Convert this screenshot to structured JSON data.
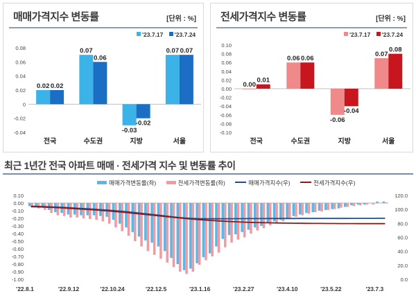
{
  "left_panel": {
    "title": "매매가격지수 변동률",
    "unit": "[단위 : %]",
    "legend": [
      "'23.7.17",
      "'23.7.24"
    ],
    "colors": [
      "#3bb3e8",
      "#1a6fc4"
    ]
  },
  "right_panel": {
    "title": "전세가격지수 변동률",
    "unit": "[단위 : %]",
    "legend": [
      "'23.7.17",
      "'23.7.24"
    ],
    "colors": [
      "#f08a8a",
      "#c8161e"
    ]
  },
  "bottom_panel": {
    "title": "최근 1년간 전국 아파트 매매 · 전세가격 지수 및 변동률 추이",
    "legend": [
      "매매가격변동률(좌)",
      "전세가격변동률(좌)",
      "매매가격지수(우)",
      "전세가격지수(우)"
    ],
    "colors": {
      "sale_bar": "#5bb7e6",
      "jeonse_bar": "#f19aa1",
      "sale_line": "#1f4e8c",
      "jeonse_line": "#8b1a1a"
    }
  },
  "chart_data": [
    {
      "type": "bar",
      "categories": [
        "전국",
        "수도권",
        "지방",
        "서울"
      ],
      "series": [
        {
          "name": "'23.7.17",
          "values": [
            0.02,
            0.07,
            -0.03,
            0.07
          ]
        },
        {
          "name": "'23.7.24",
          "values": [
            0.02,
            0.06,
            -0.02,
            0.07
          ]
        }
      ],
      "data_labels": [
        [
          "0.02",
          "0.07",
          "-0.03",
          "0.07"
        ],
        [
          "0.02",
          "0.06",
          "-0.02",
          "0.07"
        ]
      ],
      "ylim": [
        -0.04,
        0.08
      ],
      "yticks": [
        "-0.04",
        "-0.02",
        "0",
        "0.02",
        "0.04",
        "0.06",
        "0.08"
      ]
    },
    {
      "type": "bar",
      "categories": [
        "전국",
        "수도권",
        "지방",
        "서울"
      ],
      "series": [
        {
          "name": "'23.7.17",
          "values": [
            0.0,
            0.06,
            -0.06,
            0.07
          ]
        },
        {
          "name": "'23.7.24",
          "values": [
            0.01,
            0.06,
            -0.04,
            0.08
          ]
        }
      ],
      "data_labels": [
        [
          "0.00",
          "0.06",
          "-0.06",
          "0.07"
        ],
        [
          "0.01",
          "0.06",
          "-0.04",
          "0.08"
        ]
      ],
      "ylim": [
        -0.1,
        0.1
      ],
      "yticks": [
        "-0.10",
        "-0.08",
        "-0.06",
        "-0.04",
        "-0.02",
        "0.00",
        "0.02",
        "0.04",
        "0.06",
        "0.08",
        "0.10"
      ]
    },
    {
      "type": "bar",
      "x_ticks": [
        "'22.8.1",
        "'22.9.12",
        "'22.10.24",
        "'22.12.5",
        "'23.1.16",
        "'23.2.27",
        "'23.4.10",
        "'23.5.22",
        "'23.7.3"
      ],
      "series": [
        {
          "name": "매매가격변동률(좌)",
          "values": [
            -0.04,
            -0.05,
            -0.06,
            -0.09,
            -0.12,
            -0.13,
            -0.15,
            -0.15,
            -0.16,
            -0.16,
            -0.16,
            -0.17,
            -0.18,
            -0.22,
            -0.27,
            -0.32,
            -0.38,
            -0.44,
            -0.49,
            -0.52,
            -0.57,
            -0.63,
            -0.72,
            -0.8,
            -0.88,
            -0.86,
            -0.79,
            -0.71,
            -0.66,
            -0.57,
            -0.47,
            -0.42,
            -0.41,
            -0.38,
            -0.35,
            -0.32,
            -0.3,
            -0.26,
            -0.24,
            -0.22,
            -0.2,
            -0.17,
            -0.15,
            -0.13,
            -0.12,
            -0.1,
            -0.09,
            -0.08,
            -0.07,
            -0.05,
            -0.03,
            -0.02,
            -0.02,
            0.0,
            0.02,
            0.02
          ]
        },
        {
          "name": "전세가격변동률(좌)",
          "values": [
            -0.05,
            -0.07,
            -0.09,
            -0.13,
            -0.16,
            -0.17,
            -0.19,
            -0.19,
            -0.2,
            -0.21,
            -0.22,
            -0.24,
            -0.27,
            -0.32,
            -0.37,
            -0.43,
            -0.5,
            -0.57,
            -0.63,
            -0.68,
            -0.73,
            -0.78,
            -0.84,
            -0.9,
            -0.93,
            -0.9,
            -0.81,
            -0.75,
            -0.7,
            -0.65,
            -0.58,
            -0.52,
            -0.48,
            -0.45,
            -0.4,
            -0.36,
            -0.33,
            -0.29,
            -0.26,
            -0.24,
            -0.21,
            -0.18,
            -0.16,
            -0.14,
            -0.12,
            -0.11,
            -0.09,
            -0.08,
            -0.06,
            -0.05,
            -0.04,
            -0.03,
            -0.02,
            -0.02,
            0.0,
            0.01
          ]
        },
        {
          "name": "매매가격지수(우)",
          "values": [
            104.5,
            104.3,
            104.0,
            103.6,
            103.2,
            102.8,
            102.3,
            101.8,
            101.3,
            100.8,
            100.2,
            99.6,
            98.9,
            98.2,
            97.4,
            96.5,
            95.6,
            94.6,
            93.6,
            92.6,
            91.5,
            90.4,
            89.4,
            88.4,
            87.6,
            87.1,
            86.8,
            86.7,
            86.6,
            86.6,
            86.7,
            86.7,
            86.8,
            86.8,
            86.9,
            86.9,
            86.9,
            87.0,
            87.0,
            87.0,
            87.0,
            87.0,
            87.1,
            87.1,
            87.1,
            87.1,
            87.1,
            87.1,
            87.1,
            87.1,
            87.2,
            87.2,
            87.2,
            87.2,
            87.3,
            87.3
          ]
        },
        {
          "name": "전세가격지수(우)",
          "values": [
            103.8,
            103.6,
            103.3,
            102.9,
            102.5,
            102.0,
            101.5,
            101.0,
            100.4,
            99.8,
            99.2,
            98.5,
            97.8,
            97.0,
            96.2,
            95.3,
            94.4,
            93.5,
            92.5,
            91.6,
            90.6,
            89.7,
            88.8,
            87.9,
            87.0,
            86.2,
            85.5,
            84.8,
            84.2,
            83.6,
            83.1,
            82.6,
            82.2,
            81.8,
            81.5,
            81.2,
            81.0,
            80.8,
            80.6,
            80.4,
            80.3,
            80.2,
            80.1,
            80.0,
            79.9,
            79.9,
            79.8,
            79.8,
            79.7,
            79.7,
            79.7,
            79.6,
            79.6,
            79.6,
            79.6,
            79.6
          ]
        }
      ],
      "y_left": {
        "ylim": [
          -1.0,
          0.1
        ],
        "ticks": [
          "0.10",
          "0.00",
          "-0.10",
          "-0.20",
          "-0.30",
          "-0.40",
          "-0.50",
          "-0.60",
          "-0.70",
          "-0.80",
          "-0.90",
          "-1.00"
        ]
      },
      "y_right": {
        "ylim": [
          0.0,
          120.0
        ],
        "ticks": [
          "120.0",
          "100.0",
          "80.0",
          "60.0",
          "40.0",
          "20.0",
          "0.0"
        ]
      }
    }
  ]
}
